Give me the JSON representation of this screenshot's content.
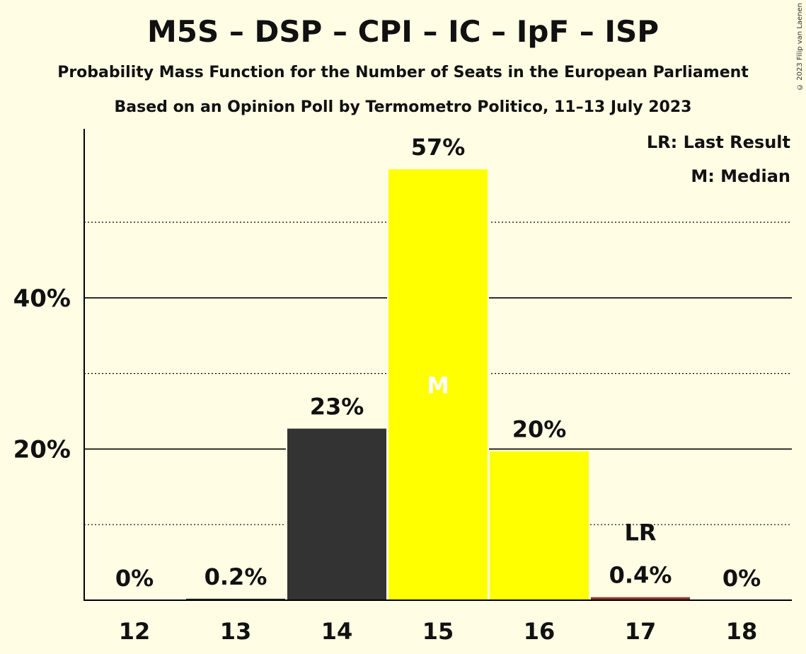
{
  "title": "M5S – DSP – CPI – IC – IpF – ISP",
  "subtitle": "Probability Mass Function for the Number of Seats in the European Parliament",
  "subtitle2": "Based on an Opinion Poll by Termometro Politico, 11–13 July 2023",
  "copyright": "© 2023 Filip van Laenen",
  "legend": {
    "last_result": "LR: Last Result",
    "median": "M: Median"
  },
  "colors": {
    "background": "#FFFDE4",
    "bar_normal": "#333333",
    "bar_median_range": "#FFFF00",
    "bar_last_result": "#8B3A2F"
  },
  "chart_data": {
    "type": "bar",
    "categories": [
      "12",
      "13",
      "14",
      "15",
      "16",
      "17",
      "18"
    ],
    "values": [
      0,
      0.2,
      22.7,
      57.0,
      19.7,
      0.4,
      0
    ],
    "data_labels": [
      "0%",
      "0.2%",
      "23%",
      "57%",
      "20%",
      "0.4%",
      "0%"
    ],
    "bar_colors": [
      "#333333",
      "#333333",
      "#333333",
      "#FFFF00",
      "#FFFF00",
      "#8B3A2F",
      "#333333"
    ],
    "markers": [
      {
        "category": "15",
        "label": "M"
      },
      {
        "category": "17",
        "label": "LR"
      }
    ],
    "y_ticks": [
      20,
      40
    ],
    "y_tick_labels": [
      "20%",
      "40%"
    ],
    "minor_gridlines": [
      10,
      30,
      50
    ],
    "ylim": [
      0,
      62
    ],
    "xlabel": "",
    "ylabel": "",
    "grid": true,
    "legend_placement": "top-right"
  }
}
